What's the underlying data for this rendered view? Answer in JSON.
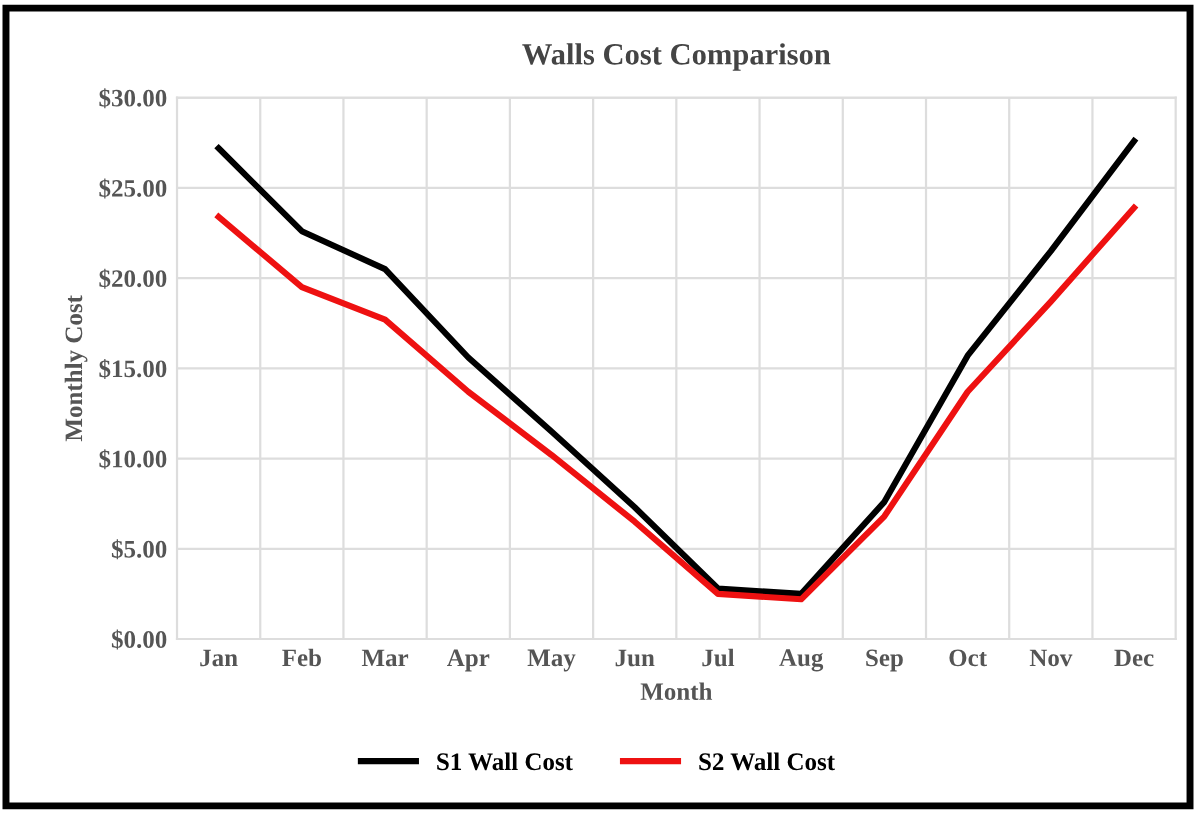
{
  "chart_data": {
    "type": "line",
    "title": "Walls Cost Comparison",
    "xlabel": "Month",
    "ylabel": "Monthly Cost",
    "categories": [
      "Jan",
      "Feb",
      "Mar",
      "Apr",
      "May",
      "Jun",
      "Jul",
      "Aug",
      "Sep",
      "Oct",
      "Nov",
      "Dec"
    ],
    "series": [
      {
        "name": "S1 Wall Cost",
        "color": "#000000",
        "values": [
          27.2,
          22.6,
          20.5,
          15.6,
          11.5,
          7.3,
          2.8,
          2.5,
          7.6,
          15.7,
          21.5,
          27.6
        ]
      },
      {
        "name": "S2 Wall Cost",
        "color": "#ee1111",
        "values": [
          23.4,
          19.5,
          17.7,
          13.7,
          10.2,
          6.5,
          2.5,
          2.2,
          6.8,
          13.7,
          18.7,
          23.9
        ]
      }
    ],
    "ylim": [
      0,
      30
    ],
    "yticks": [
      {
        "value": 0,
        "label": "$0.00"
      },
      {
        "value": 5,
        "label": "$5.00"
      },
      {
        "value": 10,
        "label": "$10.00"
      },
      {
        "value": 15,
        "label": "$15.00"
      },
      {
        "value": 20,
        "label": "$20.00"
      },
      {
        "value": 25,
        "label": "$25.00"
      },
      {
        "value": 30,
        "label": "$30.00"
      }
    ],
    "grid": true,
    "legend": "bottom",
    "marker": "none",
    "line_style": "solid"
  }
}
